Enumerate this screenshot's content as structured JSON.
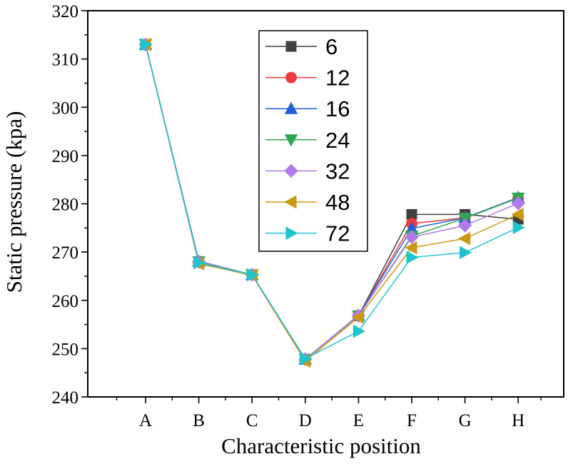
{
  "chart_data": {
    "type": "line",
    "xlabel": "Characteristic position",
    "ylabel": "Static pressure (kpa)",
    "categories": [
      "A",
      "B",
      "C",
      "D",
      "E",
      "F",
      "G",
      "H"
    ],
    "ylim": [
      240,
      320
    ],
    "yticks": [
      240,
      250,
      260,
      270,
      280,
      290,
      300,
      310,
      320
    ],
    "grid": false,
    "legend_position": "top-center",
    "series": [
      {
        "name": "6",
        "color": "#404040",
        "marker": "square",
        "values": [
          313.0,
          268.0,
          265.3,
          247.8,
          256.8,
          277.8,
          277.8,
          276.8
        ]
      },
      {
        "name": "12",
        "color": "#f03c3c",
        "marker": "circle",
        "values": [
          313.0,
          268.1,
          265.3,
          247.8,
          256.9,
          275.9,
          277.1,
          281.2
        ]
      },
      {
        "name": "16",
        "color": "#1f5fd6",
        "marker": "triangle-up",
        "values": [
          313.0,
          268.1,
          265.3,
          247.8,
          256.9,
          274.9,
          277.1,
          281.3
        ]
      },
      {
        "name": "24",
        "color": "#2fa84f",
        "marker": "triangle-down",
        "values": [
          313.0,
          268.0,
          265.3,
          247.8,
          256.8,
          273.3,
          277.0,
          281.2
        ]
      },
      {
        "name": "32",
        "color": "#b07ae8",
        "marker": "diamond",
        "values": [
          313.0,
          268.0,
          265.3,
          247.8,
          256.8,
          273.1,
          275.5,
          280.1
        ]
      },
      {
        "name": "48",
        "color": "#c99a0e",
        "marker": "triangle-left",
        "values": [
          313.0,
          267.6,
          265.2,
          247.4,
          256.5,
          270.9,
          272.8,
          277.8
        ]
      },
      {
        "name": "72",
        "color": "#1fc5cc",
        "marker": "triangle-right",
        "values": [
          313.0,
          267.8,
          265.3,
          247.9,
          253.6,
          268.9,
          269.9,
          275.1
        ]
      }
    ]
  }
}
